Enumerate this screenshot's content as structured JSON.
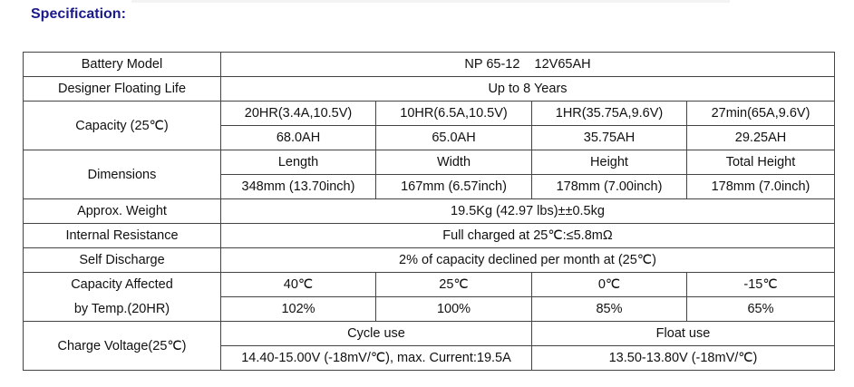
{
  "title": "Specification:",
  "rows": {
    "model": {
      "label": "Battery Model",
      "value": "NP 65-12    12V65AH"
    },
    "life": {
      "label": "Designer Floating Life",
      "value": "Up to 8 Years"
    },
    "capacity": {
      "label": "Capacity   (25℃)",
      "headers": [
        "20HR(3.4A,10.5V)",
        "10HR(6.5A,10.5V)",
        "1HR(35.75A,9.6V)",
        "27min(65A,9.6V)"
      ],
      "values": [
        "68.0AH",
        "65.0AH",
        "35.75AH",
        "29.25AH"
      ]
    },
    "dimensions": {
      "label": "Dimensions",
      "headers": [
        "Length",
        "Width",
        "Height",
        "Total Height"
      ],
      "values": [
        "348mm (13.70inch)",
        "167mm (6.57inch)",
        "178mm (7.00inch)",
        "178mm (7.0inch)"
      ]
    },
    "weight": {
      "label": "Approx. Weight",
      "value": "19.5Kg (42.97 lbs)±±0.5kg"
    },
    "resistance": {
      "label": "Internal Resistance",
      "value": "Full charged at 25℃:≤5.8mΩ"
    },
    "discharge": {
      "label": "Self Discharge",
      "value": "2% of capacity declined per month at (25℃)"
    },
    "temp": {
      "label1": "Capacity Affected",
      "label2": "by Temp.(20HR)",
      "headers": [
        "40℃",
        "25℃",
        "0℃",
        "-15℃"
      ],
      "values": [
        "102%",
        "100%",
        "85%",
        "65%"
      ]
    },
    "charge": {
      "label": "Charge Voltage(25℃)",
      "cycle_label": "Cycle use",
      "cycle_value": "14.40-15.00V (-18mV/℃), max. Current:19.5A",
      "float_label": "Float use",
      "float_value": "13.50-13.80V (-18mV/℃)"
    }
  }
}
